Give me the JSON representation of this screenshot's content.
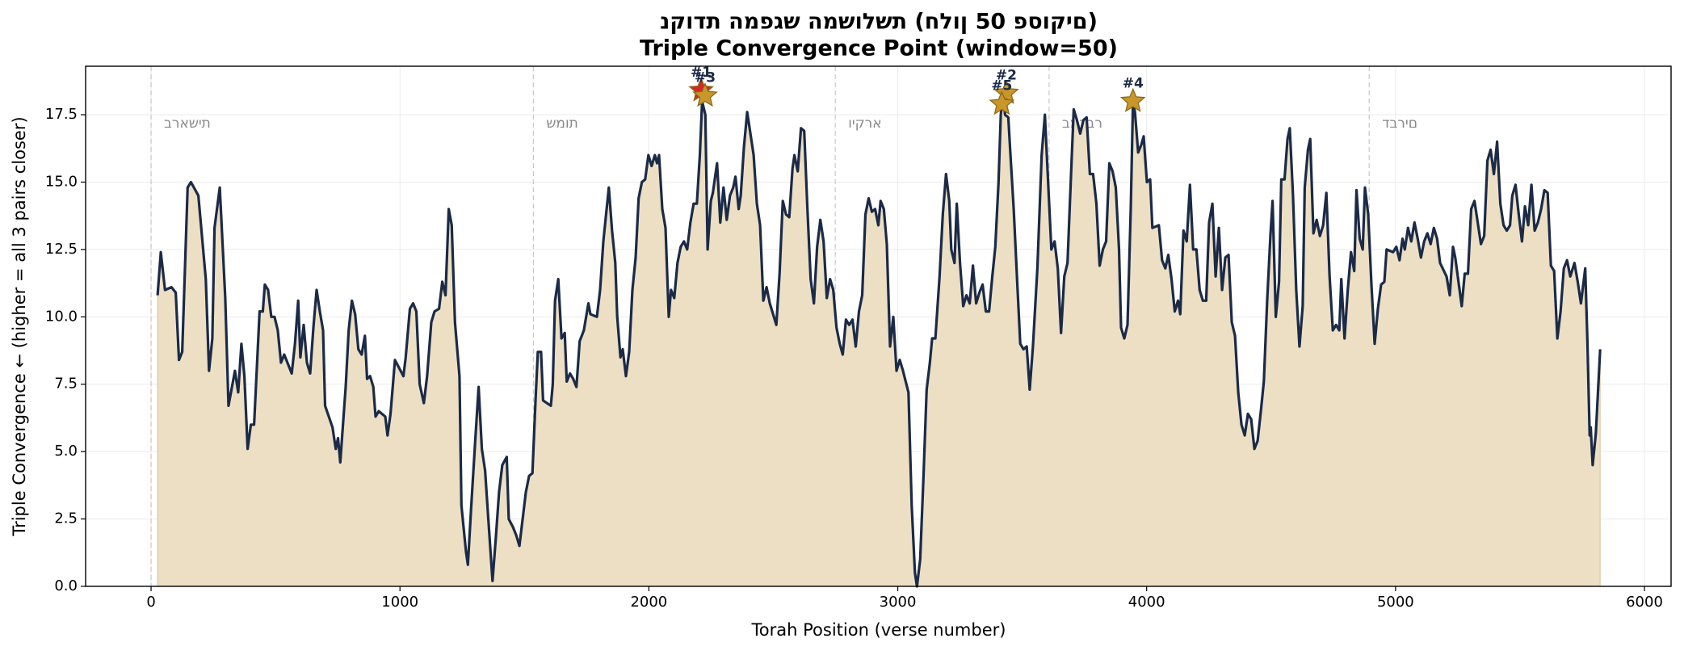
{
  "chart_data": {
    "type": "area",
    "title": "נקודת המפגש המשולשת (חלון 50 פסוקים)",
    "subtitle": "Triple Convergence Point (window=50)",
    "x_label": "Torah Position (verse number)",
    "y_label": "Triple Convergence ← (higher = all 3 pairs closer)",
    "color": "#1b2a47",
    "fill_color": "#ecdfc3",
    "grid": true,
    "xlim": [
      -263,
      6107
    ],
    "ylim": [
      0,
      19.3
    ],
    "xticks": [
      0,
      1000,
      2000,
      3000,
      4000,
      5000,
      6000
    ],
    "yticks": [
      {
        "value": 0,
        "label": "0.0"
      },
      2.5,
      {
        "value": 5,
        "label": "5.0"
      },
      7.5,
      {
        "value": 10,
        "label": "10.0"
      },
      12.5,
      {
        "value": 15,
        "label": "15.0"
      },
      17.5
    ],
    "books": [
      {
        "name": "בראשית",
        "start": 0
      },
      {
        "name": "שמות",
        "start": 1536
      },
      {
        "name": "ויקרא",
        "start": 2749
      },
      {
        "name": "במדבר",
        "start": 3608
      },
      {
        "name": "דברים",
        "start": 4894
      }
    ],
    "peaks": [
      {
        "label": "#1",
        "x": 2210,
        "y": 18.4,
        "color": "#d62728"
      },
      {
        "label": "#3",
        "x": 2226,
        "y": 18.2,
        "color": "#c9962a"
      },
      {
        "label": "#2",
        "x": 3436,
        "y": 18.3,
        "color": "#c9962a"
      },
      {
        "label": "#5",
        "x": 3418,
        "y": 17.9,
        "color": "#c9962a"
      },
      {
        "label": "#4",
        "x": 3945,
        "y": 18.0,
        "color": "#c9962a"
      }
    ],
    "x": [
      26,
      39,
      56,
      82,
      99,
      112,
      125,
      147,
      160,
      190,
      220,
      233,
      246,
      255,
      276,
      298,
      311,
      337,
      350,
      363,
      375,
      388,
      401,
      414,
      436,
      449,
      457,
      470,
      483,
      496,
      509,
      522,
      535,
      565,
      578,
      591,
      600,
      613,
      626,
      639,
      652,
      665,
      678,
      691,
      699,
      729,
      742,
      751,
      760,
      782,
      794,
      807,
      820,
      833,
      846,
      859,
      868,
      880,
      893,
      902,
      915,
      941,
      950,
      962,
      980,
      1014,
      1023,
      1040,
      1053,
      1066,
      1079,
      1096,
      1109,
      1126,
      1139,
      1157,
      1170,
      1183,
      1196,
      1208,
      1221,
      1239,
      1247,
      1265,
      1273,
      1286,
      1303,
      1316,
      1329,
      1342,
      1355,
      1372,
      1385,
      1398,
      1411,
      1429,
      1437,
      1454,
      1467,
      1480,
      1493,
      1506,
      1519,
      1532,
      1545,
      1554,
      1567,
      1575,
      1606,
      1614,
      1623,
      1636,
      1649,
      1662,
      1670,
      1683,
      1696,
      1709,
      1722,
      1739,
      1757,
      1765,
      1791,
      1804,
      1817,
      1839,
      1852,
      1865,
      1873,
      1886,
      1895,
      1908,
      1921,
      1934,
      1947,
      1959,
      1972,
      1985,
      1998,
      2011,
      2024,
      2033,
      2041,
      2054,
      2067,
      2080,
      2089,
      2102,
      2115,
      2128,
      2141,
      2154,
      2167,
      2180,
      2193,
      2205,
      2214,
      2227,
      2236,
      2249,
      2257,
      2274,
      2287,
      2300,
      2313,
      2326,
      2339,
      2348,
      2361,
      2369,
      2382,
      2395,
      2408,
      2421,
      2434,
      2447,
      2460,
      2473,
      2486,
      2512,
      2525,
      2538,
      2551,
      2564,
      2577,
      2585,
      2598,
      2611,
      2624,
      2637,
      2650,
      2663,
      2676,
      2689,
      2702,
      2715,
      2728,
      2741,
      2754,
      2767,
      2779,
      2792,
      2805,
      2818,
      2831,
      2844,
      2857,
      2870,
      2883,
      2896,
      2909,
      2922,
      2931,
      2944,
      2956,
      2969,
      2982,
      2995,
      3008,
      3021,
      3043,
      3056,
      3069,
      3077,
      3090,
      3103,
      3116,
      3129,
      3138,
      3151,
      3168,
      3181,
      3194,
      3207,
      3215,
      3228,
      3237,
      3250,
      3263,
      3276,
      3289,
      3302,
      3315,
      3328,
      3341,
      3354,
      3367,
      3380,
      3392,
      3405,
      3414,
      3423,
      3431,
      3444,
      3453,
      3466,
      3479,
      3492,
      3505,
      3518,
      3530,
      3543,
      3561,
      3578,
      3591,
      3604,
      3617,
      3630,
      3643,
      3656,
      3669,
      3682,
      3695,
      3707,
      3720,
      3733,
      3746,
      3759,
      3772,
      3785,
      3798,
      3811,
      3824,
      3837,
      3850,
      3863,
      3876,
      3889,
      3897,
      3910,
      3923,
      3936,
      3945,
      3953,
      3966,
      3979,
      3988,
      4001,
      4014,
      4023,
      4049,
      4062,
      4075,
      4087,
      4100,
      4113,
      4126,
      4135,
      4148,
      4161,
      4174,
      4187,
      4200,
      4213,
      4226,
      4239,
      4251,
      4264,
      4277,
      4290,
      4303,
      4316,
      4329,
      4342,
      4355,
      4368,
      4381,
      4394,
      4407,
      4420,
      4433,
      4446,
      4459,
      4471,
      4484,
      4497,
      4506,
      4519,
      4532,
      4541,
      4554,
      4566,
      4575,
      4588,
      4601,
      4614,
      4627,
      4635,
      4648,
      4657,
      4670,
      4683,
      4696,
      4709,
      4722,
      4735,
      4748,
      4761,
      4774,
      4782,
      4795,
      4808,
      4821,
      4834,
      4843,
      4856,
      4868,
      4877,
      4890,
      4903,
      4916,
      4929,
      4942,
      4955,
      4964,
      4990,
      5003,
      5016,
      5028,
      5037,
      5050,
      5063,
      5076,
      5089,
      5102,
      5115,
      5128,
      5141,
      5154,
      5167,
      5179,
      5205,
      5218,
      5231,
      5240,
      5253,
      5266,
      5278,
      5291,
      5304,
      5317,
      5330,
      5343,
      5356,
      5369,
      5382,
      5395,
      5408,
      5421,
      5434,
      5447,
      5460,
      5469,
      5482,
      5495,
      5508,
      5520,
      5533,
      5546,
      5559,
      5572,
      5585,
      5598,
      5611,
      5624,
      5637,
      5650,
      5663,
      5676,
      5689,
      5702,
      5719,
      5732,
      5745,
      5762,
      5771,
      5780,
      5784,
      5792,
      5805,
      5822
    ],
    "values": [
      10.8,
      12.4,
      11.0,
      11.1,
      10.9,
      8.4,
      8.7,
      14.8,
      15.0,
      14.5,
      11.4,
      8.0,
      9.2,
      13.3,
      14.8,
      10.7,
      6.7,
      8.0,
      7.2,
      9.0,
      7.8,
      5.1,
      6.0,
      6.0,
      10.2,
      10.2,
      11.2,
      11.0,
      10.0,
      10.0,
      9.5,
      8.3,
      8.6,
      7.9,
      9.0,
      10.6,
      8.5,
      9.7,
      8.3,
      7.9,
      9.6,
      11.0,
      10.2,
      9.5,
      6.7,
      5.9,
      5.1,
      5.5,
      4.6,
      7.4,
      9.5,
      10.6,
      10.1,
      8.8,
      8.6,
      9.3,
      7.7,
      7.8,
      7.4,
      6.3,
      6.5,
      6.3,
      5.6,
      6.4,
      8.4,
      7.8,
      8.5,
      10.3,
      10.5,
      10.2,
      7.5,
      6.8,
      7.8,
      9.8,
      10.2,
      10.3,
      11.3,
      10.8,
      14.0,
      13.4,
      9.8,
      7.8,
      3.0,
      1.3,
      0.8,
      2.9,
      5.5,
      7.4,
      5.1,
      4.3,
      2.5,
      0.2,
      1.8,
      3.5,
      4.5,
      4.8,
      2.5,
      2.2,
      1.9,
      1.5,
      2.5,
      3.5,
      4.1,
      4.2,
      7.0,
      8.7,
      8.7,
      6.9,
      6.7,
      7.5,
      10.6,
      11.4,
      9.2,
      9.4,
      7.6,
      7.9,
      7.7,
      7.4,
      9.1,
      9.5,
      10.5,
      10.1,
      10.0,
      11.0,
      12.8,
      14.8,
      13.2,
      12.0,
      10.0,
      8.5,
      8.8,
      7.8,
      8.7,
      11.0,
      12.2,
      14.4,
      15.0,
      15.1,
      16.0,
      15.6,
      16.0,
      15.7,
      16.0,
      14.0,
      13.3,
      10.0,
      11.0,
      10.7,
      12.0,
      12.6,
      12.8,
      12.5,
      13.5,
      14.2,
      14.2,
      16.0,
      18.0,
      17.5,
      12.5,
      14.3,
      14.6,
      15.7,
      13.5,
      14.8,
      13.6,
      14.5,
      14.8,
      15.2,
      14.0,
      14.5,
      16.3,
      17.6,
      16.8,
      16.0,
      14.2,
      13.4,
      10.6,
      11.1,
      10.5,
      9.7,
      11.6,
      14.3,
      13.8,
      13.7,
      15.5,
      16.0,
      15.4,
      17.0,
      16.9,
      14.0,
      11.4,
      10.5,
      12.6,
      13.6,
      12.8,
      10.7,
      11.4,
      11.0,
      9.6,
      9.0,
      8.6,
      9.9,
      9.7,
      9.9,
      8.9,
      10.2,
      10.8,
      13.8,
      14.4,
      13.9,
      14.0,
      13.4,
      14.3,
      14.0,
      12.7,
      8.9,
      10.0,
      8.0,
      8.4,
      8.0,
      7.2,
      3.0,
      0.5,
      0.0,
      1.0,
      4.0,
      7.3,
      8.3,
      9.2,
      9.2,
      11.5,
      13.8,
      15.3,
      14.3,
      12.5,
      12.0,
      14.2,
      12.0,
      10.4,
      10.8,
      10.5,
      11.9,
      10.5,
      10.9,
      11.2,
      10.2,
      10.2,
      11.5,
      12.6,
      15.0,
      17.5,
      18.3,
      17.5,
      17.4,
      16.0,
      14.0,
      11.5,
      9.0,
      8.8,
      8.9,
      7.3,
      8.9,
      11.8,
      16.0,
      17.5,
      15.0,
      12.5,
      12.8,
      11.8,
      9.4,
      11.5,
      12.0,
      15.0,
      17.7,
      17.3,
      16.8,
      17.3,
      17.4,
      15.3,
      15.3,
      14.2,
      11.9,
      12.5,
      12.8,
      15.7,
      15.4,
      14.8,
      12.5,
      9.6,
      9.2,
      9.7,
      14.0,
      18.0,
      17.6,
      16.1,
      16.4,
      16.7,
      15.0,
      15.1,
      13.3,
      13.4,
      12.1,
      11.8,
      12.3,
      11.4,
      10.2,
      10.6,
      10.1,
      13.2,
      12.8,
      14.9,
      12.5,
      12.5,
      11.0,
      10.6,
      10.6,
      13.5,
      14.2,
      11.5,
      13.3,
      11.0,
      12.2,
      12.3,
      9.8,
      9.3,
      7.2,
      6.0,
      5.6,
      6.4,
      6.2,
      5.1,
      5.4,
      6.5,
      7.6,
      10.6,
      13.0,
      14.3,
      10.0,
      11.3,
      15.1,
      15.1,
      16.6,
      17.0,
      14.5,
      11.0,
      8.9,
      10.4,
      14.8,
      16.2,
      16.6,
      13.1,
      13.6,
      13.0,
      13.4,
      14.6,
      11.5,
      9.5,
      9.7,
      9.5,
      11.4,
      9.2,
      11.0,
      12.4,
      11.7,
      14.7,
      12.9,
      12.5,
      14.8,
      13.8,
      11.2,
      9.0,
      10.3,
      11.2,
      11.3,
      12.5,
      12.4,
      12.6,
      12.1,
      12.9,
      12.5,
      13.3,
      12.8,
      13.5,
      12.9,
      12.2,
      12.8,
      13.1,
      12.7,
      13.3,
      12.9,
      12.0,
      11.5,
      10.8,
      12.6,
      12.2,
      11.3,
      10.4,
      11.6,
      11.6,
      14.0,
      14.3,
      13.5,
      12.7,
      13.0,
      15.8,
      16.2,
      15.3,
      16.5,
      14.2,
      13.4,
      13.2,
      13.4,
      14.5,
      14.9,
      13.8,
      12.8,
      14.1,
      13.4,
      14.9,
      13.2,
      13.5,
      14.0,
      14.7,
      14.6,
      11.9,
      11.7,
      9.2,
      10.2,
      11.8,
      12.1,
      11.5,
      12.0,
      11.3,
      10.5,
      11.8,
      9.0,
      5.6,
      5.9,
      4.5,
      5.7,
      8.8
    ]
  }
}
